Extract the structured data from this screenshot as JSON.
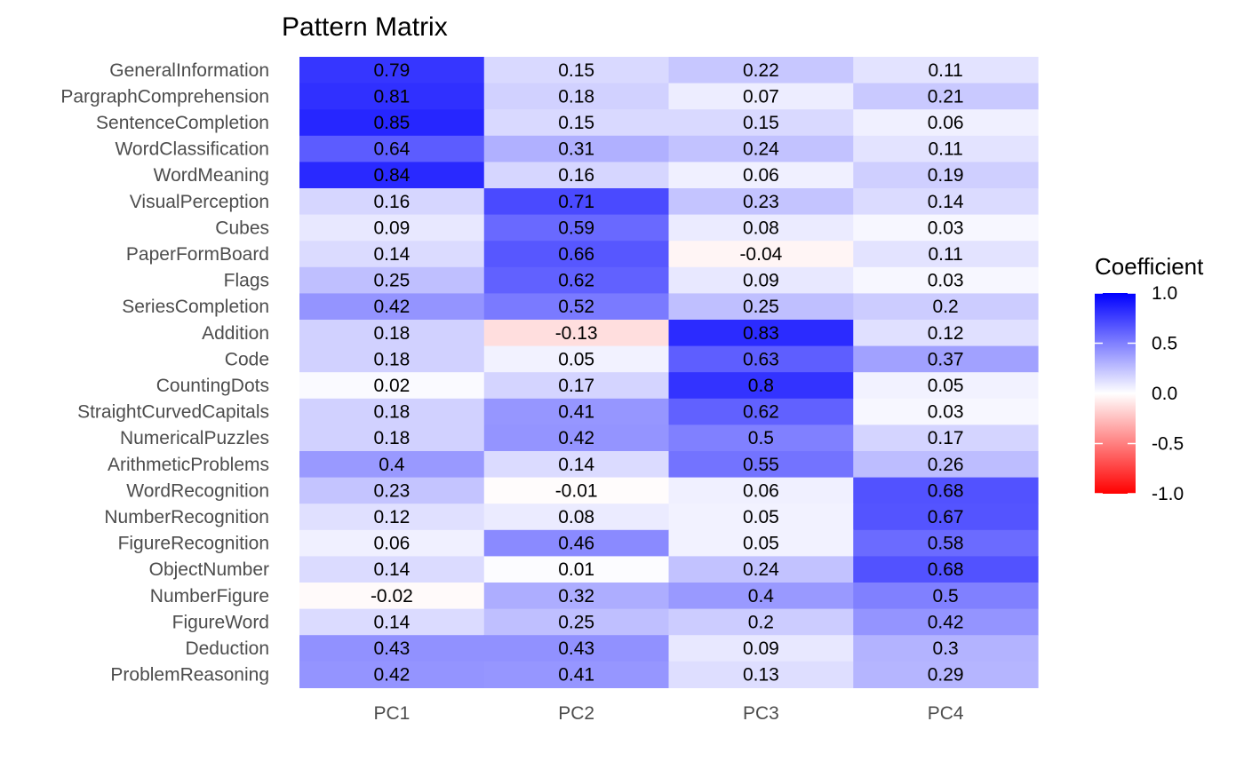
{
  "chart_data": {
    "type": "heatmap",
    "title": "Pattern Matrix",
    "xlabel": "",
    "ylabel": "",
    "columns": [
      "PC1",
      "PC2",
      "PC3",
      "PC4"
    ],
    "rows": [
      "GeneralInformation",
      "PargraphComprehension",
      "SentenceCompletion",
      "WordClassification",
      "WordMeaning",
      "VisualPerception",
      "Cubes",
      "PaperFormBoard",
      "Flags",
      "SeriesCompletion",
      "Addition",
      "Code",
      "CountingDots",
      "StraightCurvedCapitals",
      "NumericalPuzzles",
      "ArithmeticProblems",
      "WordRecognition",
      "NumberRecognition",
      "FigureRecognition",
      "ObjectNumber",
      "NumberFigure",
      "FigureWord",
      "Deduction",
      "ProblemReasoning"
    ],
    "values": [
      [
        0.79,
        0.15,
        0.22,
        0.11
      ],
      [
        0.81,
        0.18,
        0.07,
        0.21
      ],
      [
        0.85,
        0.15,
        0.15,
        0.06
      ],
      [
        0.64,
        0.31,
        0.24,
        0.11
      ],
      [
        0.84,
        0.16,
        0.06,
        0.19
      ],
      [
        0.16,
        0.71,
        0.23,
        0.14
      ],
      [
        0.09,
        0.59,
        0.08,
        0.03
      ],
      [
        0.14,
        0.66,
        -0.04,
        0.11
      ],
      [
        0.25,
        0.62,
        0.09,
        0.03
      ],
      [
        0.42,
        0.52,
        0.25,
        0.2
      ],
      [
        0.18,
        -0.13,
        0.83,
        0.12
      ],
      [
        0.18,
        0.05,
        0.63,
        0.37
      ],
      [
        0.02,
        0.17,
        0.8,
        0.05
      ],
      [
        0.18,
        0.41,
        0.62,
        0.03
      ],
      [
        0.18,
        0.42,
        0.5,
        0.17
      ],
      [
        0.4,
        0.14,
        0.55,
        0.26
      ],
      [
        0.23,
        -0.01,
        0.06,
        0.68
      ],
      [
        0.12,
        0.08,
        0.05,
        0.67
      ],
      [
        0.06,
        0.46,
        0.05,
        0.58
      ],
      [
        0.14,
        0.01,
        0.24,
        0.68
      ],
      [
        -0.02,
        0.32,
        0.4,
        0.5
      ],
      [
        0.14,
        0.25,
        0.2,
        0.42
      ],
      [
        0.43,
        0.43,
        0.09,
        0.3
      ],
      [
        0.42,
        0.41,
        0.13,
        0.29
      ]
    ],
    "color_scale": {
      "title": "Coefficient",
      "low": "#ff0000",
      "mid": "#ffffff",
      "high": "#0000ff",
      "domain": [
        -1.0,
        1.0
      ],
      "ticks": [
        1.0,
        0.5,
        0.0,
        -0.5,
        -1.0
      ],
      "tick_labels": [
        "1.0",
        "0.5",
        "0.0",
        "-0.5",
        "-1.0"
      ]
    },
    "grid": false,
    "legend_position": "right"
  }
}
